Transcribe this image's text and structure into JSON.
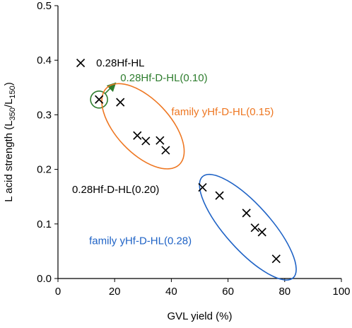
{
  "chart_data": {
    "type": "scatter",
    "title": "",
    "xlabel": "GVL yield (%)",
    "ylabel": {
      "prefix": "L acid strength (L",
      "sub1": "350",
      "mid": "/L",
      "sub2": "150",
      "suffix": ")"
    },
    "xlim": [
      0,
      100
    ],
    "ylim": [
      0,
      0.5
    ],
    "x_ticks": [
      "0",
      "20",
      "40",
      "60",
      "80",
      "100"
    ],
    "y_ticks": [
      "0.0",
      "0.1",
      "0.2",
      "0.3",
      "0.4",
      "0.5"
    ],
    "grid": false,
    "legend": "none",
    "marker": "x",
    "marker_color": "#000000",
    "points": [
      {
        "x": 8,
        "y": 0.395
      },
      {
        "x": 14.5,
        "y": 0.328
      },
      {
        "x": 22,
        "y": 0.323
      },
      {
        "x": 28,
        "y": 0.262
      },
      {
        "x": 31,
        "y": 0.252
      },
      {
        "x": 36,
        "y": 0.253
      },
      {
        "x": 38,
        "y": 0.235
      },
      {
        "x": 51,
        "y": 0.167
      },
      {
        "x": 57,
        "y": 0.152
      },
      {
        "x": 66.5,
        "y": 0.12
      },
      {
        "x": 69.5,
        "y": 0.093
      },
      {
        "x": 72,
        "y": 0.085
      },
      {
        "x": 77,
        "y": 0.036
      }
    ],
    "annotations": [
      {
        "text": "0.28Hf-HL",
        "color": "#000000",
        "x": 13.5,
        "y": 0.395
      },
      {
        "text": "0.28Hf-D-HL(0.10)",
        "color": "#2e7d2e",
        "x": 22,
        "y": 0.368
      },
      {
        "text": "family yHf-D-HL(0.15)",
        "color": "#ee7722",
        "x": 40,
        "y": 0.306
      },
      {
        "text": "0.28Hf-D-HL(0.20)",
        "color": "#000000",
        "x": 5,
        "y": 0.163
      },
      {
        "text": "family yHf-D-HL(0.28)",
        "color": "#1f63c6",
        "x": 11,
        "y": 0.069
      }
    ],
    "groups": [
      {
        "label": "0.28Hf-D-HL(0.10)",
        "color": "#2e7d2e",
        "shape": "circle"
      },
      {
        "label": "family yHf-D-HL(0.15)",
        "color": "#ee7722",
        "shape": "ellipse"
      },
      {
        "label": "family yHf-D-HL(0.28)",
        "color": "#1f63c6",
        "shape": "ellipse"
      }
    ]
  }
}
